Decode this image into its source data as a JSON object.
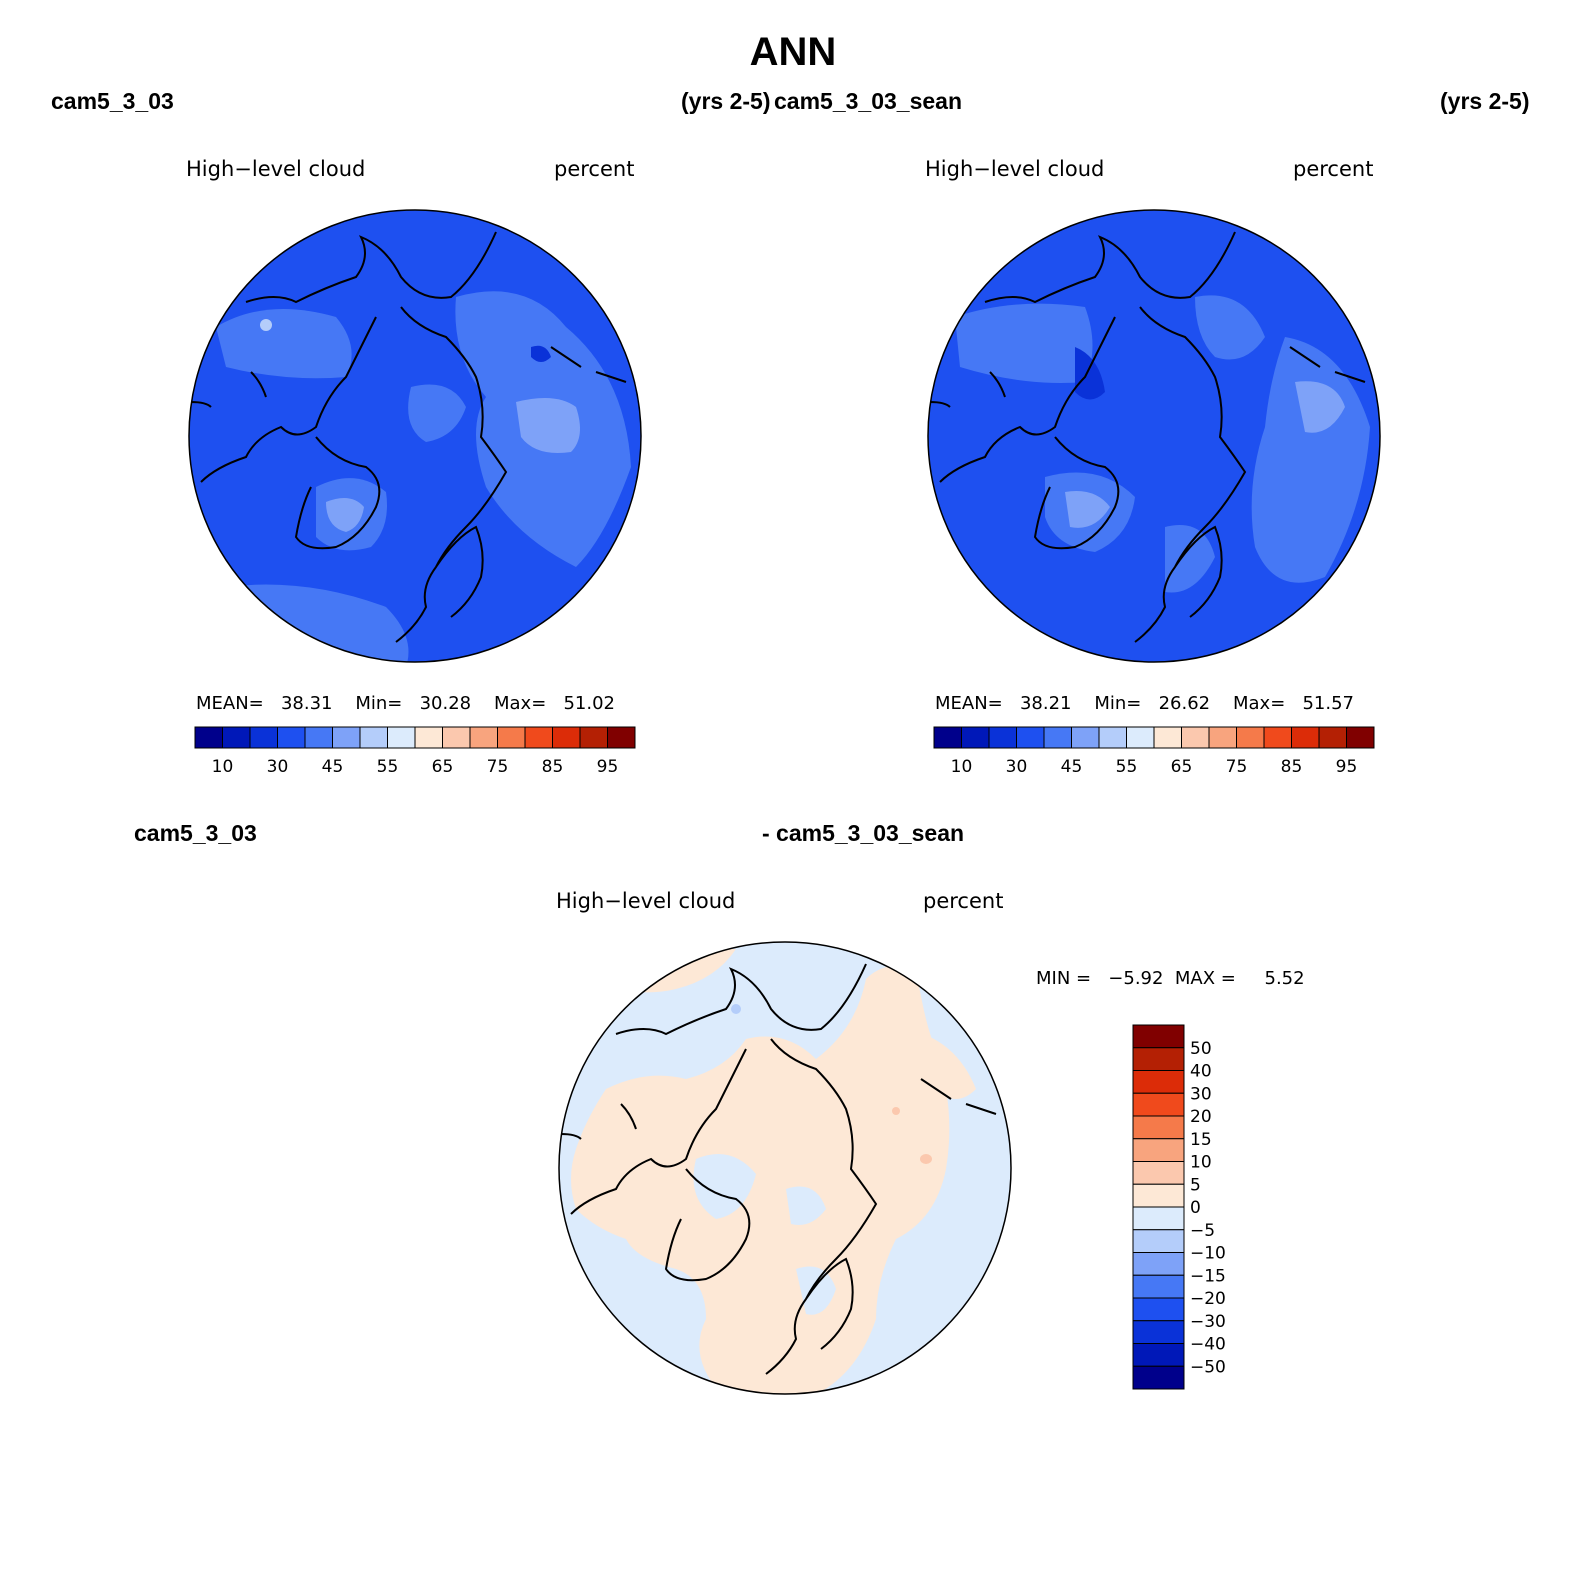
{
  "figure_title": "ANN",
  "top_labels": {
    "left_case": "cam5_3_03",
    "left_years": "(yrs 2-5)",
    "right_case": "cam5_3_03_sean",
    "right_years": "(yrs 2-5)"
  },
  "diff_labels": {
    "left_case": "cam5_3_03",
    "right_case": "- cam5_3_03_sean"
  },
  "panels": [
    {
      "variable": "High−level cloud",
      "units": "percent",
      "stats": {
        "mean_label": "MEAN=",
        "mean": "38.31",
        "min_label": "Min=",
        "min": "30.28",
        "max_label": "Max=",
        "max": "51.02"
      }
    },
    {
      "variable": "High−level cloud",
      "units": "percent",
      "stats": {
        "mean_label": "MEAN=",
        "mean": "38.21",
        "min_label": "Min=",
        "min": "26.62",
        "max_label": "Max=",
        "max": "51.57"
      }
    },
    {
      "variable": "High−level cloud",
      "units": "percent",
      "stats": {
        "min_label": "MIN =",
        "min": "−5.92",
        "max_label": "MAX =",
        "max": "5.52"
      }
    }
  ],
  "colorbar_top": {
    "tick_labels": [
      "10",
      "30",
      "45",
      "55",
      "65",
      "75",
      "85",
      "95"
    ],
    "colors": [
      "#00008b",
      "#0018b8",
      "#0a32d8",
      "#1e50f0",
      "#4678f5",
      "#7ea2f8",
      "#b4cdfa",
      "#dcebfc",
      "#fde8d6",
      "#fbc8ae",
      "#f8a47e",
      "#f57a4a",
      "#f04a1c",
      "#dc2c08",
      "#b42004",
      "#800000"
    ]
  },
  "colorbar_diff": {
    "tick_labels": [
      "50",
      "40",
      "30",
      "20",
      "15",
      "10",
      "5",
      "0",
      "−5",
      "−10",
      "−15",
      "−20",
      "−30",
      "−40",
      "−50"
    ],
    "colors": [
      "#800000",
      "#b42004",
      "#dc2c08",
      "#f04a1c",
      "#f57a4a",
      "#f8a47e",
      "#fbc8ae",
      "#fde8d6",
      "#dcebfc",
      "#b4cdfa",
      "#7ea2f8",
      "#4678f5",
      "#1e50f0",
      "#0a32d8",
      "#0018b8",
      "#00008b"
    ]
  },
  "map_colors": {
    "field_top_base": "#1e50f0",
    "field_top_light": "#4678f5",
    "field_top_lighter": "#7ea2f8",
    "field_top_lightest": "#b4cdfa",
    "field_top_dark": "#0a32d8",
    "diff_positive": "#fde8d6",
    "diff_negative": "#dcebfc",
    "diff_strong_positive": "#fbc8ae",
    "diff_negative_2": "#b4cdfa",
    "coastline": "#000000"
  }
}
